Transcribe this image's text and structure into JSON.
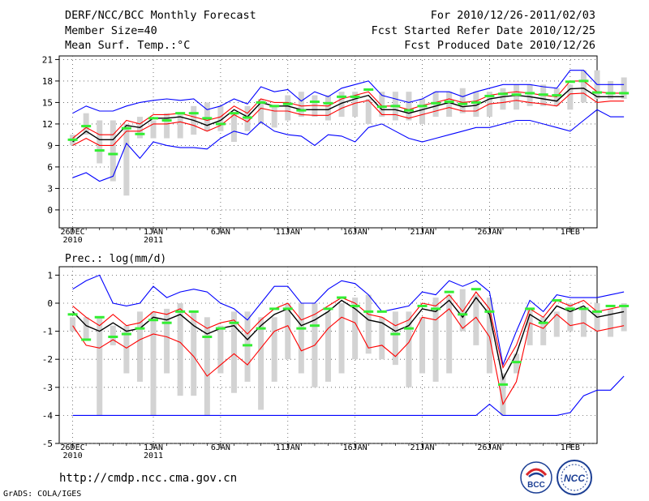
{
  "header": {
    "title": "DERF/NCC/BCC Monthly Forecast",
    "member_size": "Member Size=40",
    "variable": "Mean Surf. Temp.:°C",
    "forecast_range": "For 2010/12/26-2011/02/03",
    "started_refer": "Fcst Started Refer Date 2010/12/25",
    "produced": "Fcst Produced Date 2010/12/26"
  },
  "footer": {
    "url": "http://cmdp.ncc.cma.gov.cn",
    "grads": "GrADS: COLA/IGES",
    "logo_bcc": "BCC",
    "logo_ncc": "NCC"
  },
  "colors": {
    "box": "#d3d3d3",
    "mean": "#000000",
    "spread": "#ff0000",
    "envelope": "#0000ff",
    "median": "#33ee33"
  },
  "chart_data": [
    {
      "type": "line",
      "id": "temperature",
      "title": "",
      "xlabel": "",
      "ylabel": "Mean Surf. Temp.:°C",
      "grid": true,
      "ylim": [
        -2.5,
        21.5
      ],
      "yticks": [
        0,
        3,
        6,
        9,
        12,
        15,
        18,
        21
      ],
      "xlim": [
        -1,
        39
      ],
      "xticks": [
        {
          "day": 0,
          "label": "26DEC",
          "label2": "2010"
        },
        {
          "day": 6,
          "label": "1JAN",
          "label2": "2011"
        },
        {
          "day": 11,
          "label": "6JAN"
        },
        {
          "day": 16,
          "label": "11JAN"
        },
        {
          "day": 21,
          "label": "16JAN"
        },
        {
          "day": 26,
          "label": "21JAN"
        },
        {
          "day": 31,
          "label": "26JAN"
        },
        {
          "day": 37,
          "label": "1FEB"
        }
      ],
      "series": [
        {
          "name": "box_low",
          "values": [
            9.0,
            10.5,
            6.5,
            4.0,
            2.0,
            10.0,
            10.0,
            10.0,
            10.0,
            10.5,
            11.0,
            11.0,
            9.5,
            11.0,
            12.0,
            11.5,
            12.5,
            13.0,
            13.0,
            12.5,
            13.0,
            13.0,
            12.0,
            13.0,
            12.5,
            12.5,
            12.0,
            13.0,
            13.0,
            13.5,
            13.0,
            13.0,
            14.0,
            14.0,
            14.5,
            14.5,
            14.5,
            14.0,
            15.0,
            15.5,
            15.5,
            15.5
          ]
        },
        {
          "name": "box_high",
          "values": [
            10.5,
            13.5,
            12.5,
            12.5,
            12.0,
            13.0,
            12.5,
            13.5,
            13.5,
            14.5,
            15.0,
            14.5,
            13.5,
            14.5,
            15.5,
            14.5,
            16.0,
            16.5,
            16.0,
            16.0,
            16.5,
            16.5,
            15.5,
            16.5,
            16.5,
            16.5,
            15.5,
            16.5,
            16.5,
            17.0,
            16.5,
            16.5,
            17.0,
            17.5,
            17.5,
            17.5,
            17.0,
            17.5,
            19.5,
            19.5,
            18.0,
            18.5
          ]
        },
        {
          "name": "median",
          "values": [
            9.8,
            11.7,
            8.3,
            7.8,
            11.4,
            10.6,
            12.8,
            12.5,
            13.5,
            13.5,
            12.8,
            12.0,
            13.5,
            12.9,
            15.0,
            14.5,
            14.8,
            13.9,
            15.1,
            14.9,
            15.8,
            15.8,
            16.8,
            14.4,
            14.5,
            13.9,
            14.5,
            14.9,
            15.1,
            14.8,
            15.0,
            15.9,
            16.2,
            16.1,
            16.3,
            16.1,
            16.0,
            17.9,
            18.0,
            16.4,
            16.3,
            16.3
          ]
        },
        {
          "name": "spread_high",
          "values": [
            10.0,
            11.5,
            10.5,
            10.5,
            12.5,
            12.0,
            13.3,
            13.3,
            13.5,
            13.0,
            12.5,
            13.0,
            14.5,
            13.5,
            15.5,
            15.0,
            15.0,
            14.5,
            14.6,
            14.5,
            15.5,
            16.0,
            16.5,
            14.5,
            14.5,
            14.0,
            14.6,
            15.0,
            15.5,
            15.0,
            15.2,
            16.0,
            16.3,
            16.5,
            16.3,
            16.0,
            15.8,
            18.0,
            18.0,
            16.5,
            16.3,
            16.3
          ]
        },
        {
          "name": "mean",
          "values": [
            9.5,
            11.0,
            9.8,
            9.8,
            11.8,
            11.5,
            12.8,
            12.8,
            13.0,
            12.5,
            11.8,
            12.5,
            14.0,
            13.0,
            15.0,
            14.5,
            14.5,
            14.0,
            14.0,
            14.0,
            14.9,
            15.5,
            16.0,
            14.0,
            14.0,
            13.5,
            14.0,
            14.5,
            15.0,
            14.4,
            14.6,
            15.5,
            15.8,
            16.0,
            15.8,
            15.5,
            15.2,
            16.9,
            17.0,
            15.8,
            15.8,
            15.8
          ]
        },
        {
          "name": "spread_low",
          "values": [
            9.0,
            10.0,
            9.0,
            9.0,
            11.0,
            11.0,
            12.0,
            12.0,
            12.3,
            11.8,
            11.0,
            11.8,
            13.3,
            12.3,
            14.2,
            13.8,
            13.8,
            13.3,
            13.2,
            13.2,
            14.2,
            14.9,
            15.3,
            13.3,
            13.3,
            12.8,
            13.3,
            13.8,
            14.3,
            13.8,
            13.8,
            14.8,
            15.0,
            15.3,
            15.0,
            14.8,
            14.5,
            16.2,
            16.3,
            15.0,
            15.2,
            15.2
          ]
        },
        {
          "name": "envelope_max",
          "values": [
            13.5,
            14.5,
            13.8,
            13.8,
            14.5,
            15.0,
            15.3,
            15.5,
            15.3,
            15.5,
            14.0,
            14.5,
            15.5,
            14.8,
            17.2,
            16.5,
            16.8,
            15.2,
            16.5,
            15.8,
            17.0,
            17.5,
            18.0,
            16.0,
            15.5,
            15.0,
            15.5,
            16.5,
            16.5,
            15.8,
            16.5,
            17.0,
            17.5,
            17.5,
            17.5,
            17.2,
            17.0,
            19.5,
            19.5,
            17.5,
            17.5,
            17.5
          ]
        },
        {
          "name": "envelope_min",
          "values": [
            4.5,
            5.2,
            4.0,
            4.7,
            9.3,
            7.2,
            9.5,
            9.0,
            8.7,
            8.7,
            8.5,
            10.0,
            11.0,
            10.5,
            12.3,
            11.0,
            10.5,
            10.3,
            9.0,
            10.5,
            10.3,
            9.5,
            11.5,
            12.0,
            11.0,
            10.0,
            9.5,
            10.0,
            10.5,
            11.0,
            11.5,
            11.5,
            12.0,
            12.5,
            12.5,
            12.0,
            11.5,
            11.0,
            12.5,
            14.0,
            13.0,
            13.0
          ]
        }
      ]
    },
    {
      "type": "line",
      "id": "precipitation",
      "title": "",
      "xlabel": "",
      "ylabel": "Prec.: log(mm/d)",
      "grid": true,
      "ylim": [
        -5,
        1.3
      ],
      "yticks": [
        -5,
        -4,
        -3,
        -2,
        -1,
        0,
        1
      ],
      "xlim": [
        -1,
        39
      ],
      "xticks": [
        {
          "day": 0,
          "label": "26DEC",
          "label2": "2010"
        },
        {
          "day": 6,
          "label": "1JAN",
          "label2": "2011"
        },
        {
          "day": 11,
          "label": "6JAN"
        },
        {
          "day": 16,
          "label": "11JAN"
        },
        {
          "day": 21,
          "label": "16JAN"
        },
        {
          "day": 26,
          "label": "21JAN"
        },
        {
          "day": 31,
          "label": "26JAN"
        },
        {
          "day": 37,
          "label": "1FEB"
        }
      ],
      "series": [
        {
          "name": "box_low",
          "values": [
            -1.0,
            -1.3,
            -4.0,
            -1.5,
            -2.5,
            -2.8,
            -4.0,
            -2.5,
            -3.3,
            -3.3,
            -4.0,
            -2.5,
            -3.2,
            -2.8,
            -3.8,
            -2.8,
            -2.0,
            -2.5,
            -3.0,
            -2.8,
            -2.5,
            -2.0,
            -1.8,
            -2.0,
            -2.2,
            -3.0,
            -2.5,
            -2.8,
            -2.5,
            -1.0,
            -1.5,
            -2.5,
            -4.0,
            -2.5,
            -1.5,
            -1.5,
            -1.2,
            -1.0,
            -1.2,
            -1.0,
            -1.2,
            -1.0
          ]
        },
        {
          "name": "box_high",
          "values": [
            -0.5,
            -0.5,
            -0.5,
            -0.8,
            -0.8,
            -0.3,
            -0.3,
            -0.2,
            0.0,
            -0.3,
            -0.5,
            -0.8,
            -0.3,
            -0.3,
            -0.5,
            -0.5,
            0.0,
            0.0,
            0.0,
            -0.3,
            0.0,
            0.2,
            0.3,
            -0.5,
            -0.3,
            -0.3,
            -0.5,
            0.2,
            0.3,
            0.5,
            0.3,
            0.2,
            -2.5,
            -1.8,
            -0.2,
            -0.5,
            -0.3,
            0.0,
            -0.2,
            0.0,
            -0.2,
            0.0
          ]
        },
        {
          "name": "median",
          "values": [
            -0.4,
            -1.3,
            -0.5,
            -1.2,
            -1.1,
            -0.9,
            -0.6,
            -0.7,
            -0.3,
            -0.3,
            -1.2,
            -0.9,
            -0.7,
            -1.5,
            -0.9,
            -0.2,
            -0.2,
            -0.9,
            -0.8,
            -0.2,
            0.2,
            -0.1,
            -0.3,
            -0.3,
            -1.1,
            -0.9,
            -0.1,
            -0.2,
            0.4,
            -0.4,
            0.5,
            -0.3,
            -2.9,
            -2.1,
            -0.2,
            -0.7,
            0.1,
            -0.2,
            -0.2,
            -0.3,
            -0.1,
            -0.1
          ]
        },
        {
          "name": "spread_high",
          "values": [
            -0.1,
            -0.5,
            -0.8,
            -0.4,
            -0.8,
            -0.7,
            -0.3,
            -0.4,
            -0.2,
            -0.6,
            -0.9,
            -0.7,
            -0.6,
            -1.1,
            -0.6,
            -0.2,
            0.0,
            -0.6,
            -0.4,
            -0.1,
            0.2,
            0.0,
            -0.4,
            -0.5,
            -0.8,
            -0.6,
            0.0,
            -0.1,
            0.3,
            -0.3,
            0.4,
            -0.2,
            -2.3,
            -1.5,
            -0.2,
            -0.5,
            0.1,
            -0.1,
            0.1,
            -0.3,
            -0.2,
            -0.1
          ]
        },
        {
          "name": "mean",
          "values": [
            -0.3,
            -0.8,
            -1.0,
            -0.7,
            -1.0,
            -0.9,
            -0.5,
            -0.6,
            -0.4,
            -0.8,
            -1.1,
            -0.9,
            -0.8,
            -1.3,
            -0.8,
            -0.4,
            -0.2,
            -0.8,
            -0.6,
            -0.3,
            0.1,
            -0.2,
            -0.6,
            -0.7,
            -1.0,
            -0.8,
            -0.2,
            -0.3,
            0.1,
            -0.5,
            0.2,
            -0.4,
            -2.7,
            -1.8,
            -0.4,
            -0.7,
            -0.1,
            -0.3,
            -0.1,
            -0.5,
            -0.4,
            -0.3
          ]
        },
        {
          "name": "spread_low",
          "values": [
            -0.8,
            -1.5,
            -1.6,
            -1.3,
            -1.6,
            -1.3,
            -1.1,
            -1.2,
            -1.4,
            -1.9,
            -2.6,
            -2.2,
            -1.8,
            -2.2,
            -1.6,
            -1.0,
            -0.8,
            -1.7,
            -1.5,
            -0.9,
            -0.5,
            -0.7,
            -1.6,
            -1.5,
            -1.9,
            -1.4,
            -0.5,
            -0.6,
            -0.2,
            -0.9,
            -0.5,
            -1.2,
            -3.6,
            -2.8,
            -0.7,
            -0.9,
            -0.4,
            -0.8,
            -0.7,
            -1.0,
            -0.9,
            -0.8
          ]
        },
        {
          "name": "envelope_max",
          "values": [
            0.5,
            0.8,
            1.0,
            0.0,
            -0.1,
            0.0,
            0.6,
            0.2,
            0.4,
            0.5,
            0.4,
            0.0,
            -0.2,
            -0.6,
            0.0,
            0.6,
            0.6,
            0.0,
            0.0,
            0.5,
            0.8,
            0.7,
            0.3,
            -0.3,
            -0.2,
            -0.1,
            0.4,
            0.3,
            0.8,
            0.6,
            0.8,
            0.4,
            -2.2,
            -1.0,
            0.1,
            -0.3,
            0.3,
            0.2,
            0.2,
            0.2,
            0.3,
            0.4
          ]
        },
        {
          "name": "envelope_min",
          "values": [
            -4.0,
            -4.0,
            -4.0,
            -4.0,
            -4.0,
            -4.0,
            -4.0,
            -4.0,
            -4.0,
            -4.0,
            -4.0,
            -4.0,
            -4.0,
            -4.0,
            -4.0,
            -4.0,
            -4.0,
            -4.0,
            -4.0,
            -4.0,
            -4.0,
            -4.0,
            -4.0,
            -4.0,
            -4.0,
            -4.0,
            -4.0,
            -4.0,
            -4.0,
            -4.0,
            -4.0,
            -3.6,
            -4.0,
            -4.0,
            -4.0,
            -4.0,
            -4.0,
            -3.9,
            -3.3,
            -3.1,
            -3.1,
            -2.6
          ]
        }
      ]
    }
  ]
}
